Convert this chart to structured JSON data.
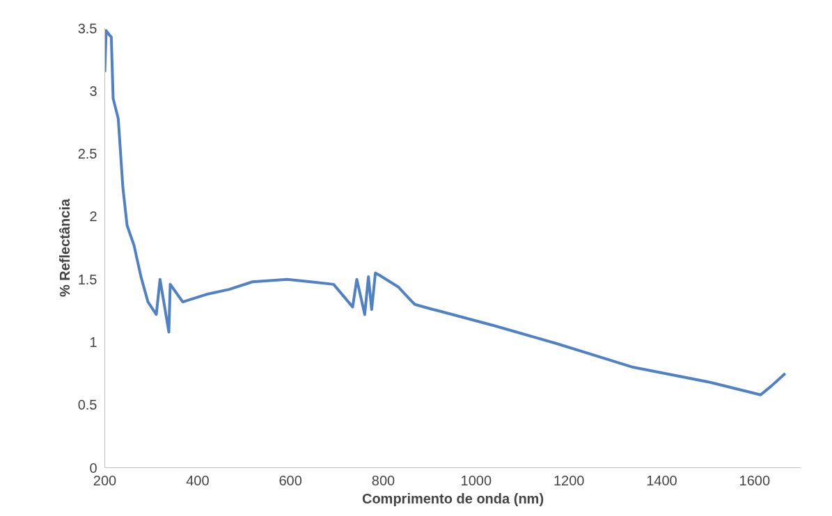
{
  "chart_data": {
    "type": "line",
    "xlabel": "Comprimento de onda (nm)",
    "ylabel": "% Reflectância",
    "xlim": [
      200,
      1700
    ],
    "xticks": [
      200,
      400,
      600,
      800,
      1000,
      1200,
      1400,
      1600
    ],
    "ylim": [
      0,
      3.5
    ],
    "yticks": [
      0,
      0.5,
      1,
      1.5,
      2,
      2.5,
      3,
      3.5
    ],
    "grid": false,
    "marker": "none",
    "line_style": "solid",
    "series": [
      {
        "color": "#4f81c4",
        "x": [
          200,
          203,
          209,
          214,
          218,
          229,
          239,
          248,
          263,
          278,
          293,
          311,
          319,
          338,
          341,
          368,
          419,
          468,
          518,
          593,
          644,
          693,
          734,
          743,
          760,
          768,
          775,
          783,
          793,
          832,
          860,
          868,
          907,
          918,
          1040,
          1172,
          1338,
          1504,
          1613,
          1636,
          1666
        ],
        "values": [
          3.15,
          3.48,
          3.45,
          3.43,
          2.94,
          2.78,
          2.23,
          1.93,
          1.77,
          1.52,
          1.32,
          1.22,
          1.5,
          1.08,
          1.46,
          1.32,
          1.38,
          1.42,
          1.48,
          1.5,
          1.48,
          1.46,
          1.28,
          1.5,
          1.22,
          1.52,
          1.26,
          1.55,
          1.53,
          1.44,
          1.33,
          1.3,
          1.26,
          1.25,
          1.13,
          0.99,
          0.8,
          0.68,
          0.58,
          0.65,
          0.75
        ]
      }
    ]
  }
}
